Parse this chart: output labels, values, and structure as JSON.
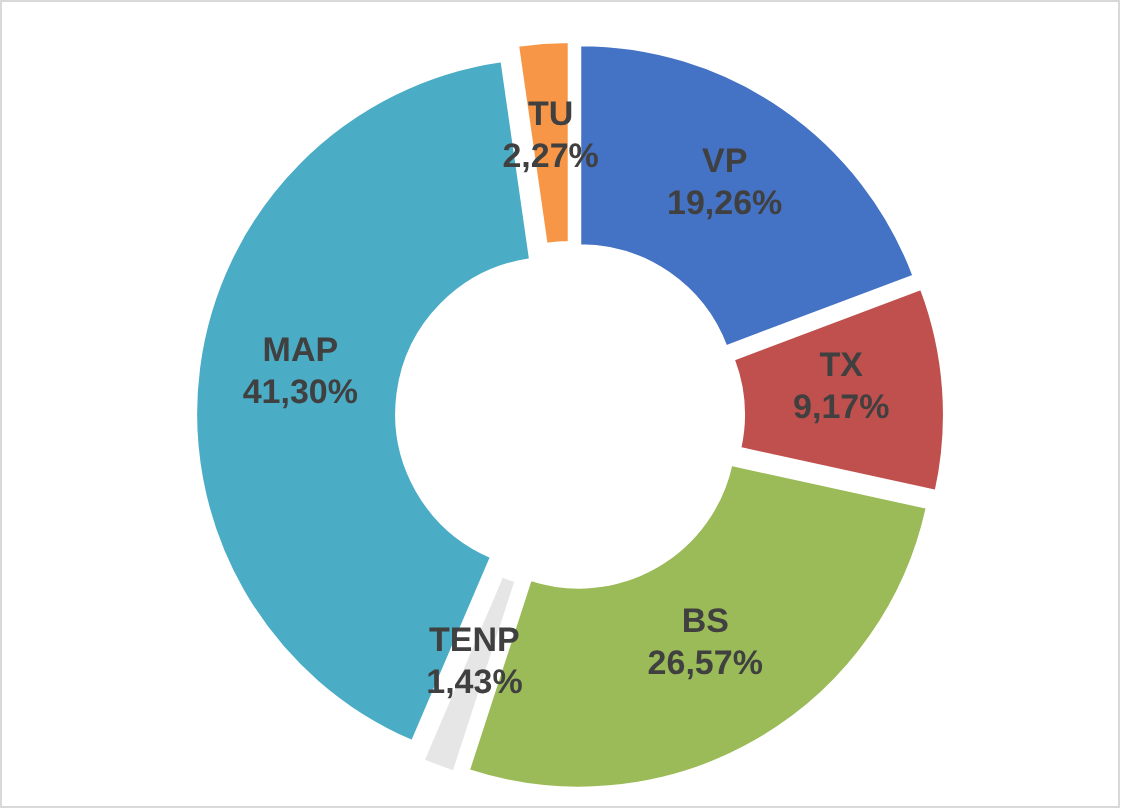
{
  "chart_data": {
    "type": "donut",
    "categories": [
      "VP",
      "TX",
      "BS",
      "TENP",
      "MAP",
      "TU"
    ],
    "values": [
      19.26,
      9.17,
      26.57,
      1.43,
      41.3,
      2.27
    ],
    "colors": [
      "#4472c4",
      "#c0504d",
      "#9bbb59",
      "#e7e6e6",
      "#4bacc6",
      "#f79646"
    ],
    "value_labels": [
      "19,26%",
      "9,17%",
      "26,57%",
      "1,43%",
      "41,30%",
      "2,27%"
    ]
  }
}
